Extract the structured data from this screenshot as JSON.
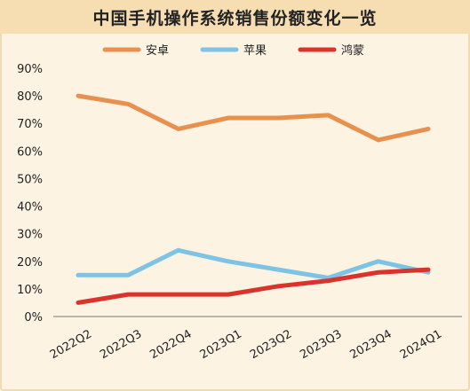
{
  "chart_data": {
    "type": "line",
    "title": "中国手机操作系统销售份额变化一览",
    "categories": [
      "2022Q2",
      "2022Q3",
      "2022Q4",
      "2023Q1",
      "2023Q2",
      "2023Q3",
      "2023Q4",
      "2024Q1"
    ],
    "series": [
      {
        "name": "安卓",
        "color": "#e8914f",
        "values": [
          80,
          77,
          68,
          72,
          72,
          73,
          64,
          68
        ]
      },
      {
        "name": "苹果",
        "color": "#7ec3e3",
        "values": [
          15,
          15,
          24,
          20,
          17,
          14,
          20,
          16
        ]
      },
      {
        "name": "鸿蒙",
        "color": "#d9332b",
        "values": [
          5,
          8,
          8,
          8,
          11,
          13,
          16,
          17
        ]
      }
    ],
    "ylim": [
      0,
      90
    ],
    "yticks": [
      "0%",
      "10%",
      "20%",
      "30%",
      "40%",
      "50%",
      "60%",
      "70%",
      "80%",
      "90%"
    ],
    "legend_position": "top",
    "grid": false
  }
}
